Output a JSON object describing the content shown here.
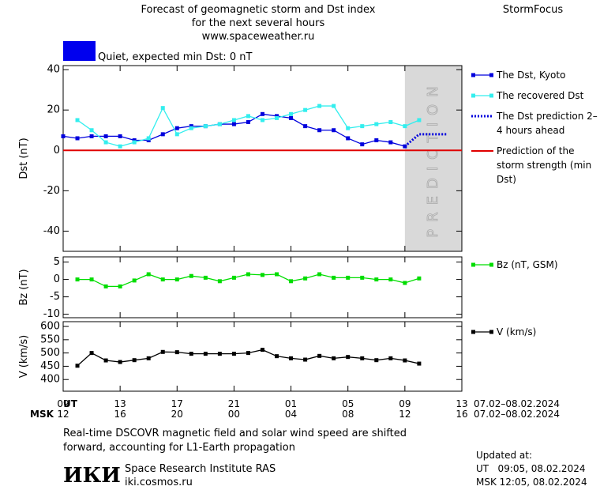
{
  "header": {
    "title_lines": [
      "Forecast of geomagnetic storm and Dst index",
      "for the next several hours",
      "www.spaceweather.ru"
    ],
    "brand": "StormFocus"
  },
  "time_axis": {
    "xlim": [
      0,
      28
    ],
    "ut_label": "UT",
    "msk_label": "MSK",
    "ut_ticks": [
      {
        "value": 0,
        "label": "09"
      },
      {
        "value": 4,
        "label": "13"
      },
      {
        "value": 8,
        "label": "17"
      },
      {
        "value": 12,
        "label": "21"
      },
      {
        "value": 16,
        "label": "01"
      },
      {
        "value": 20,
        "label": "05"
      },
      {
        "value": 24,
        "label": "09"
      },
      {
        "value": 28,
        "label": "13"
      }
    ],
    "msk_ticks": [
      {
        "value": 0,
        "label": "12"
      },
      {
        "value": 4,
        "label": "16"
      },
      {
        "value": 8,
        "label": "20"
      },
      {
        "value": 12,
        "label": "00"
      },
      {
        "value": 16,
        "label": "04"
      },
      {
        "value": 20,
        "label": "08"
      },
      {
        "value": 24,
        "label": "12"
      },
      {
        "value": 28,
        "label": "16"
      }
    ],
    "ut_dates": "07.02–08.02.2024",
    "msk_dates": "07.02–08.02.2024"
  },
  "chart_data": [
    {
      "type": "line",
      "ylabel": "Dst (nT)",
      "ylim": [
        -50,
        42
      ],
      "yticks": [
        -40,
        -20,
        0,
        20,
        40
      ],
      "quiet_label": "Quiet, expected min Dst: 0 nT",
      "quiet_color": "#0000ee",
      "min_dst": 0,
      "min_dst_label": "Prediction of the storm strength (min Dst)",
      "min_dst_color": "#e00000",
      "prediction_zone": {
        "x": [
          24,
          28
        ],
        "label": "PREDICTION"
      },
      "series": [
        {
          "name": "The Dst, Kyoto",
          "color": "#0000dd",
          "style": "marker",
          "x": [
            0,
            1,
            2,
            3,
            4,
            5,
            6,
            7,
            8,
            9,
            10,
            11,
            12,
            13,
            14,
            15,
            16,
            17,
            18,
            19,
            20,
            21,
            22,
            23,
            24
          ],
          "values": [
            7,
            6,
            7,
            7,
            7,
            5,
            5,
            8,
            11,
            12,
            12,
            13,
            13,
            14,
            18,
            17,
            16,
            12,
            10,
            10,
            6,
            3,
            5,
            4,
            2
          ]
        },
        {
          "name": "The recovered Dst",
          "color": "#33eeee",
          "style": "marker",
          "x": [
            1,
            2,
            3,
            4,
            5,
            6,
            7,
            8,
            9,
            10,
            11,
            12,
            13,
            14,
            15,
            16,
            17,
            18,
            19,
            20,
            21,
            22,
            23,
            24,
            25
          ],
          "values": [
            15,
            10,
            4,
            2,
            4,
            6,
            21,
            8,
            11,
            12,
            13,
            15,
            17,
            15,
            16,
            18,
            20,
            22,
            22,
            11,
            12,
            13,
            14,
            12,
            15
          ]
        },
        {
          "name": "The Dst prediction 2–4 hours ahead",
          "color": "#0000dd",
          "style": "dotted",
          "x": [
            24,
            25,
            26,
            27
          ],
          "values": [
            2,
            8,
            8,
            8
          ]
        }
      ]
    },
    {
      "type": "line",
      "ylabel": "Bz (nT)",
      "ylim": [
        -11,
        6.5
      ],
      "yticks": [
        -10,
        -5,
        0,
        5
      ],
      "series": [
        {
          "name": "Bz (nT, GSM)",
          "color": "#00dd00",
          "style": "marker",
          "x": [
            1,
            2,
            3,
            4,
            5,
            6,
            7,
            8,
            9,
            10,
            11,
            12,
            13,
            14,
            15,
            16,
            17,
            18,
            19,
            20,
            21,
            22,
            23,
            24,
            25
          ],
          "values": [
            0,
            0,
            -2,
            -2,
            -0.3,
            1.5,
            0,
            0,
            1,
            0.5,
            -0.5,
            0.5,
            1.5,
            1.3,
            1.5,
            -0.5,
            0.3,
            1.5,
            0.5,
            0.5,
            0.5,
            0,
            0,
            -1,
            0.3
          ]
        }
      ]
    },
    {
      "type": "line",
      "ylabel": "V (km/s)",
      "ylim": [
        356,
        618
      ],
      "yticks": [
        400,
        450,
        500,
        550,
        600
      ],
      "series": [
        {
          "name": "V (km/s)",
          "color": "#000000",
          "style": "marker",
          "x": [
            1,
            2,
            3,
            4,
            5,
            6,
            7,
            8,
            9,
            10,
            11,
            12,
            13,
            14,
            15,
            16,
            17,
            18,
            19,
            20,
            21,
            22,
            23,
            24,
            25
          ],
          "values": [
            452,
            500,
            472,
            466,
            473,
            480,
            504,
            503,
            497,
            497,
            497,
            497,
            500,
            512,
            488,
            480,
            475,
            489,
            480,
            485,
            480,
            473,
            480,
            472,
            460
          ]
        }
      ]
    }
  ],
  "footer": {
    "note_lines": [
      "Real-time DSCOVR magnetic field and solar wind speed are shifted",
      "forward, accounting for L1-Earth propagation"
    ],
    "logo": "ИКИ",
    "institute": "Space Research Institute RAS",
    "site": "iki.cosmos.ru",
    "updated_title": "Updated at:",
    "updated_ut": "UT   09:05, 08.02.2024",
    "updated_msk": "MSK 12:05, 08.02.2024"
  }
}
